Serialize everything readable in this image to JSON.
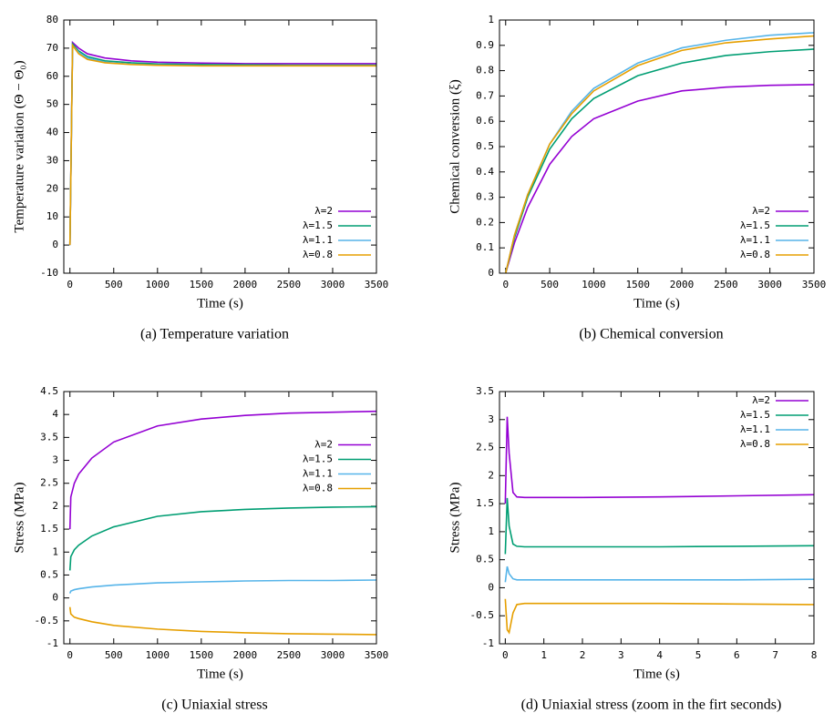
{
  "chart_data": [
    {
      "type": "line",
      "title": "(a) Temperature variation",
      "xlabel": "Time (s)",
      "ylabel": "Temperature variation (Θ − Θ₀)",
      "x": [
        0,
        30,
        100,
        200,
        400,
        700,
        1000,
        1500,
        2000,
        2500,
        3000,
        3500
      ],
      "series": [
        {
          "name": "λ=2",
          "color": "#9400d3",
          "values": [
            0,
            72,
            70,
            68,
            66.5,
            65.5,
            65,
            64.7,
            64.5,
            64.5,
            64.5,
            64.5
          ]
        },
        {
          "name": "λ=1.5",
          "color": "#009e73",
          "values": [
            0,
            71.5,
            69,
            67,
            65.5,
            64.8,
            64.4,
            64.2,
            64.1,
            64,
            64,
            64
          ]
        },
        {
          "name": "λ=1.1",
          "color": "#56b4e9",
          "values": [
            0,
            71,
            68.5,
            66.5,
            65,
            64.3,
            64,
            63.8,
            63.8,
            63.8,
            63.8,
            63.8
          ]
        },
        {
          "name": "λ=0.8",
          "color": "#e69f00",
          "values": [
            0,
            71,
            68,
            66,
            64.8,
            64.2,
            63.9,
            63.7,
            63.7,
            63.7,
            63.7,
            63.7
          ]
        }
      ],
      "xlim": [
        -70,
        3500
      ],
      "xticks": [
        0,
        500,
        1000,
        1500,
        2000,
        2500,
        3000,
        3500
      ],
      "ylim": [
        -10,
        80
      ],
      "yticks": [
        -10,
        0,
        10,
        20,
        30,
        40,
        50,
        60,
        70,
        80
      ],
      "legend": "lower right"
    },
    {
      "type": "line",
      "title": "(b) Chemical conversion",
      "xlabel": "Time (s)",
      "ylabel": "Chemical conversion (ξ)",
      "x": [
        0,
        100,
        250,
        500,
        750,
        1000,
        1500,
        2000,
        2500,
        3000,
        3500
      ],
      "series": [
        {
          "name": "λ=2",
          "color": "#9400d3",
          "values": [
            0,
            0.12,
            0.26,
            0.43,
            0.54,
            0.61,
            0.68,
            0.72,
            0.735,
            0.742,
            0.745
          ]
        },
        {
          "name": "λ=1.5",
          "color": "#009e73",
          "values": [
            0,
            0.14,
            0.3,
            0.49,
            0.61,
            0.69,
            0.78,
            0.83,
            0.86,
            0.875,
            0.885
          ]
        },
        {
          "name": "λ=1.1",
          "color": "#56b4e9",
          "values": [
            0,
            0.15,
            0.31,
            0.51,
            0.64,
            0.73,
            0.83,
            0.89,
            0.92,
            0.94,
            0.95
          ]
        },
        {
          "name": "λ=0.8",
          "color": "#e69f00",
          "values": [
            0,
            0.15,
            0.31,
            0.51,
            0.63,
            0.72,
            0.82,
            0.88,
            0.91,
            0.925,
            0.937
          ]
        }
      ],
      "xlim": [
        -70,
        3500
      ],
      "xticks": [
        0,
        500,
        1000,
        1500,
        2000,
        2500,
        3000,
        3500
      ],
      "ylim": [
        0,
        1
      ],
      "yticks": [
        0,
        0.1,
        0.2,
        0.3,
        0.4,
        0.5,
        0.6,
        0.7,
        0.8,
        0.9,
        1
      ],
      "legend": "lower right"
    },
    {
      "type": "line",
      "title": "(c) Uniaxial stress",
      "xlabel": "Time (s)",
      "ylabel": "Stress (MPa)",
      "x": [
        0,
        10,
        50,
        100,
        250,
        500,
        1000,
        1500,
        2000,
        2500,
        3000,
        3500
      ],
      "series": [
        {
          "name": "λ=2",
          "color": "#9400d3",
          "values": [
            1.5,
            2.2,
            2.5,
            2.7,
            3.05,
            3.4,
            3.75,
            3.9,
            3.98,
            4.03,
            4.05,
            4.07
          ]
        },
        {
          "name": "λ=1.5",
          "color": "#009e73",
          "values": [
            0.6,
            0.9,
            1.05,
            1.15,
            1.35,
            1.55,
            1.78,
            1.88,
            1.93,
            1.96,
            1.98,
            1.99
          ]
        },
        {
          "name": "λ=1.1",
          "color": "#56b4e9",
          "values": [
            0.1,
            0.15,
            0.18,
            0.2,
            0.24,
            0.28,
            0.33,
            0.35,
            0.37,
            0.38,
            0.38,
            0.39
          ]
        },
        {
          "name": "λ=0.8",
          "color": "#e69f00",
          "values": [
            -0.2,
            -0.35,
            -0.42,
            -0.45,
            -0.52,
            -0.6,
            -0.68,
            -0.73,
            -0.76,
            -0.78,
            -0.79,
            -0.8
          ]
        }
      ],
      "xlim": [
        -70,
        3500
      ],
      "xticks": [
        0,
        500,
        1000,
        1500,
        2000,
        2500,
        3000,
        3500
      ],
      "ylim": [
        -1,
        4.5
      ],
      "yticks": [
        -1,
        -0.5,
        0,
        0.5,
        1,
        1.5,
        2,
        2.5,
        3,
        3.5,
        4,
        4.5
      ],
      "legend": "center right"
    },
    {
      "type": "line",
      "title": "(d) Uniaxial stress (zoom in the firt seconds)",
      "xlabel": "Time (s)",
      "ylabel": "Stress (MPa)",
      "x": [
        0,
        0.05,
        0.1,
        0.2,
        0.3,
        0.5,
        1,
        2,
        4,
        6,
        8
      ],
      "series": [
        {
          "name": "λ=2",
          "color": "#9400d3",
          "values": [
            1.5,
            3.05,
            2.4,
            1.7,
            1.62,
            1.61,
            1.61,
            1.61,
            1.62,
            1.64,
            1.66
          ]
        },
        {
          "name": "λ=1.5",
          "color": "#009e73",
          "values": [
            0.6,
            1.6,
            1.1,
            0.78,
            0.74,
            0.73,
            0.73,
            0.73,
            0.73,
            0.74,
            0.75
          ]
        },
        {
          "name": "λ=1.1",
          "color": "#56b4e9",
          "values": [
            0.1,
            0.38,
            0.25,
            0.16,
            0.14,
            0.14,
            0.14,
            0.14,
            0.14,
            0.14,
            0.15
          ]
        },
        {
          "name": "λ=0.8",
          "color": "#e69f00",
          "values": [
            -0.2,
            -0.75,
            -0.8,
            -0.45,
            -0.3,
            -0.28,
            -0.28,
            -0.28,
            -0.28,
            -0.29,
            -0.3
          ]
        }
      ],
      "xlim": [
        -0.15,
        8
      ],
      "xticks": [
        0,
        1,
        2,
        3,
        4,
        5,
        6,
        7,
        8
      ],
      "ylim": [
        -1,
        3.5
      ],
      "yticks": [
        -1,
        -0.5,
        0,
        0.5,
        1,
        1.5,
        2,
        2.5,
        3,
        3.5
      ],
      "legend": "upper right"
    }
  ]
}
